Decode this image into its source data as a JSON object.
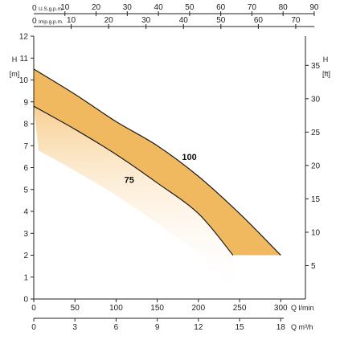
{
  "chart_data": {
    "type": "area",
    "top_axes": [
      {
        "label": "U.S.g.p.m.",
        "ticks": [
          "10",
          "20",
          "30",
          "40",
          "50",
          "60",
          "70",
          "80",
          "90"
        ],
        "values": [
          10,
          20,
          30,
          40,
          50,
          60,
          70,
          80,
          90
        ],
        "max": 90
      },
      {
        "label": "Imp.g.p.m.",
        "ticks": [
          "10",
          "20",
          "30",
          "40",
          "50",
          "60",
          "70"
        ],
        "values": [
          10,
          20,
          30,
          40,
          50,
          60,
          70
        ],
        "max": 75
      }
    ],
    "top_zero_label": "0",
    "y_left": {
      "unit_line1": "H",
      "unit_line2": "[m]",
      "range": [
        0,
        12
      ],
      "ticks": [
        "0",
        "1",
        "2",
        "3",
        "4",
        "5",
        "6",
        "7",
        "8",
        "9",
        "10",
        "11",
        "12"
      ]
    },
    "y_right": {
      "unit_line1": "H",
      "unit_line2": "[ft]",
      "ticks": [
        "5",
        "10",
        "15",
        "20",
        "25",
        "30",
        "35"
      ],
      "values": [
        5,
        10,
        15,
        20,
        25,
        30,
        35
      ]
    },
    "x_bottom": {
      "label": "Q  l/min",
      "range": [
        0,
        330
      ],
      "ticks": [
        "0",
        "50",
        "100",
        "150",
        "200",
        "250",
        "300"
      ],
      "values": [
        0,
        50,
        100,
        150,
        200,
        250,
        300
      ]
    },
    "x_bottom2": {
      "label": "Q  m³/h",
      "ticks": [
        "0",
        "3",
        "6",
        "9",
        "12",
        "15",
        "18"
      ],
      "values": [
        0,
        3,
        6,
        9,
        12,
        15,
        18
      ]
    },
    "series": [
      {
        "name": "100",
        "x": [
          0,
          50,
          100,
          150,
          200,
          250,
          300
        ],
        "y": [
          10.5,
          9.35,
          8.1,
          7.0,
          5.6,
          3.9,
          2.0
        ]
      },
      {
        "name": "75",
        "x": [
          0,
          50,
          100,
          150,
          200,
          242
        ],
        "y": [
          8.8,
          7.75,
          6.6,
          5.3,
          3.9,
          2.0
        ]
      }
    ],
    "band_color": "#f0b960",
    "curve_color": "#1a1a1a"
  }
}
